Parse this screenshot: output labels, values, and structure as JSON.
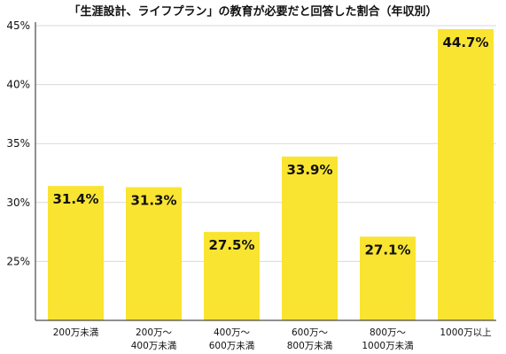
{
  "chart_data": {
    "type": "bar",
    "title": "「生涯設計、ライフプラン」の教育が必要だと回答した割合（年収別）",
    "categories": [
      [
        "200万未満"
      ],
      [
        "200万～",
        "400万未満"
      ],
      [
        "400万～",
        "600万未満"
      ],
      [
        "600万～",
        "800万未満"
      ],
      [
        "800万～",
        "1000万未満"
      ],
      [
        "1000万以上"
      ]
    ],
    "values": [
      31.4,
      31.3,
      27.5,
      33.9,
      27.1,
      44.7
    ],
    "data_labels": [
      "31.4%",
      "31.3%",
      "27.5%",
      "33.9%",
      "27.1%",
      "44.7%"
    ],
    "ylim": [
      20,
      45
    ],
    "yticks": [
      25,
      30,
      35,
      40,
      45
    ],
    "ytick_labels": [
      "25%",
      "30%",
      "35%",
      "40%",
      "45%"
    ],
    "grid": true,
    "bar_color": "#f9e431",
    "grid_color": "#d9d9d9",
    "axis_color": "#222222"
  }
}
